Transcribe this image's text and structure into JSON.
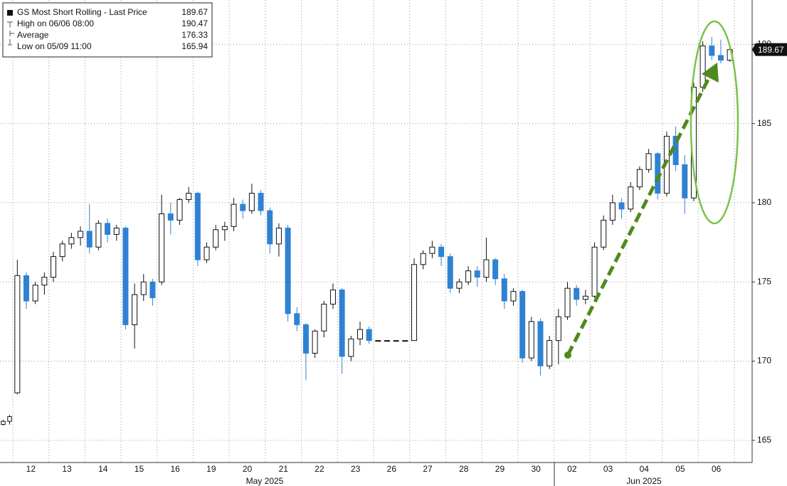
{
  "chart_data": {
    "type": "candlestick",
    "legend": [
      {
        "label": "GS Most Short Rolling - Last Price",
        "value": 189.67
      },
      {
        "label": "High on 06/06 08:00",
        "value": 190.47
      },
      {
        "label": "Average",
        "value": 176.33
      },
      {
        "label": "Low on 05/09 11:00",
        "value": 165.94
      }
    ],
    "months": [
      "May 2025",
      "Jun 2025"
    ],
    "ylim": [
      163.6,
      192.8
    ],
    "yticks": [
      165,
      170,
      175,
      180,
      185,
      190
    ],
    "grid": true,
    "up_color": "#ffffff",
    "down_color": "#2f82d3",
    "days": [
      {
        "label": null,
        "candles": [
          [
            166.0,
            166.3,
            165.94,
            166.2
          ],
          [
            166.2,
            166.6,
            166.0,
            166.5
          ]
        ]
      },
      {
        "label": "12",
        "candles": [
          [
            168.0,
            176.4,
            167.9,
            175.4
          ],
          [
            175.4,
            175.6,
            173.3,
            173.8
          ],
          [
            173.8,
            175.0,
            173.6,
            174.8
          ],
          [
            174.8,
            175.6,
            174.2,
            175.3
          ]
        ]
      },
      {
        "label": "13",
        "candles": [
          [
            175.3,
            176.9,
            175.0,
            176.6
          ],
          [
            176.6,
            177.6,
            176.3,
            177.4
          ],
          [
            177.4,
            178.1,
            177.1,
            177.8
          ],
          [
            177.8,
            178.5,
            177.3,
            178.2
          ]
        ]
      },
      {
        "label": "14",
        "candles": [
          [
            178.2,
            179.9,
            176.8,
            177.2
          ],
          [
            177.2,
            178.9,
            177.0,
            178.7
          ],
          [
            178.7,
            179.0,
            177.5,
            178.0
          ],
          [
            178.0,
            178.6,
            177.6,
            178.4
          ]
        ]
      },
      {
        "label": "15",
        "candles": [
          [
            178.4,
            178.5,
            172.0,
            172.3
          ],
          [
            172.3,
            174.9,
            170.8,
            174.2
          ],
          [
            174.2,
            175.5,
            173.8,
            175.0
          ],
          [
            175.0,
            175.2,
            173.5,
            174.0
          ]
        ]
      },
      {
        "label": "16",
        "candles": [
          [
            175.0,
            180.5,
            174.8,
            179.3
          ],
          [
            179.3,
            180.0,
            178.0,
            178.9
          ],
          [
            178.9,
            180.3,
            178.6,
            180.2
          ],
          [
            180.2,
            181.0,
            180.0,
            180.6
          ]
        ]
      },
      {
        "label": "19",
        "candles": [
          [
            180.6,
            180.7,
            176.0,
            176.4
          ],
          [
            176.4,
            177.5,
            176.2,
            177.2
          ],
          [
            177.2,
            178.6,
            177.0,
            178.3
          ],
          [
            178.3,
            178.8,
            177.6,
            178.5
          ]
        ]
      },
      {
        "label": "20",
        "candles": [
          [
            178.5,
            180.3,
            178.2,
            179.9
          ],
          [
            179.9,
            180.2,
            179.0,
            179.5
          ],
          [
            179.5,
            181.2,
            179.3,
            180.6
          ],
          [
            180.6,
            180.8,
            179.2,
            179.5
          ]
        ]
      },
      {
        "label": "21",
        "candles": [
          [
            179.5,
            179.7,
            176.8,
            177.4
          ],
          [
            177.4,
            178.7,
            176.6,
            178.4
          ],
          [
            178.4,
            178.6,
            172.5,
            173.0
          ],
          [
            173.0,
            173.4,
            171.9,
            172.3
          ]
        ]
      },
      {
        "label": "22",
        "candles": [
          [
            172.3,
            172.4,
            168.8,
            170.5
          ],
          [
            170.5,
            172.0,
            170.2,
            171.9
          ],
          [
            171.9,
            173.8,
            171.5,
            173.6
          ],
          [
            173.6,
            174.9,
            173.3,
            174.5
          ]
        ]
      },
      {
        "label": "23",
        "candles": [
          [
            174.5,
            174.6,
            169.2,
            170.3
          ],
          [
            170.3,
            171.6,
            170.0,
            171.4
          ],
          [
            171.4,
            172.5,
            171.0,
            172.0
          ],
          [
            172.0,
            172.2,
            171.1,
            171.3
          ]
        ]
      },
      {
        "label": "26",
        "candles": [
          [
            171.3,
            171.3,
            171.3,
            171.3
          ],
          [
            171.3,
            171.3,
            171.3,
            171.3
          ],
          [
            171.3,
            171.3,
            171.3,
            171.3
          ],
          [
            171.3,
            171.3,
            171.3,
            171.3
          ]
        ]
      },
      {
        "label": "27",
        "candles": [
          [
            171.3,
            176.5,
            171.3,
            176.1
          ],
          [
            176.1,
            177.0,
            175.8,
            176.8
          ],
          [
            176.8,
            177.6,
            176.5,
            177.2
          ],
          [
            177.2,
            177.4,
            176.0,
            176.6
          ]
        ]
      },
      {
        "label": "28",
        "candles": [
          [
            176.6,
            176.8,
            174.3,
            174.6
          ],
          [
            174.6,
            175.2,
            174.3,
            175.0
          ],
          [
            175.0,
            176.0,
            174.8,
            175.7
          ],
          [
            175.7,
            176.0,
            174.7,
            175.3
          ]
        ]
      },
      {
        "label": "29",
        "candles": [
          [
            175.3,
            177.8,
            175.0,
            176.4
          ],
          [
            176.4,
            176.5,
            174.8,
            175.2
          ],
          [
            175.2,
            175.5,
            173.3,
            173.8
          ],
          [
            173.8,
            174.6,
            173.5,
            174.4
          ]
        ]
      },
      {
        "label": "30",
        "candles": [
          [
            174.4,
            174.5,
            169.9,
            170.2
          ],
          [
            170.2,
            172.8,
            170.0,
            172.5
          ],
          [
            172.5,
            172.7,
            169.1,
            169.7
          ],
          [
            169.7,
            171.6,
            169.5,
            171.3
          ]
        ]
      },
      {
        "label": "02",
        "candles": [
          [
            171.3,
            173.3,
            169.8,
            172.8
          ],
          [
            172.8,
            175.0,
            172.6,
            174.6
          ],
          [
            174.6,
            174.8,
            173.5,
            173.9
          ],
          [
            173.9,
            174.5,
            173.6,
            174.1
          ]
        ]
      },
      {
        "label": "03",
        "candles": [
          [
            174.1,
            177.5,
            174.0,
            177.2
          ],
          [
            177.2,
            179.2,
            177.0,
            178.9
          ],
          [
            178.9,
            180.5,
            178.6,
            180.0
          ],
          [
            180.0,
            180.3,
            179.0,
            179.6
          ]
        ]
      },
      {
        "label": "04",
        "candles": [
          [
            179.6,
            181.3,
            179.4,
            181.0
          ],
          [
            181.0,
            182.3,
            180.8,
            182.1
          ],
          [
            182.1,
            183.4,
            181.9,
            183.1
          ],
          [
            183.1,
            183.2,
            180.2,
            180.6
          ]
        ]
      },
      {
        "label": "05",
        "candles": [
          [
            180.6,
            184.5,
            180.4,
            184.2
          ],
          [
            184.2,
            184.8,
            182.0,
            182.4
          ],
          [
            182.4,
            183.0,
            179.3,
            180.3
          ],
          [
            180.3,
            187.6,
            180.1,
            187.3
          ]
        ]
      },
      {
        "label": "06",
        "candles": [
          [
            187.3,
            190.2,
            187.0,
            189.9
          ],
          [
            189.9,
            190.47,
            189.0,
            189.3
          ],
          [
            189.3,
            190.3,
            188.8,
            189.0
          ],
          [
            189.0,
            190.0,
            188.9,
            189.67
          ]
        ]
      }
    ]
  }
}
